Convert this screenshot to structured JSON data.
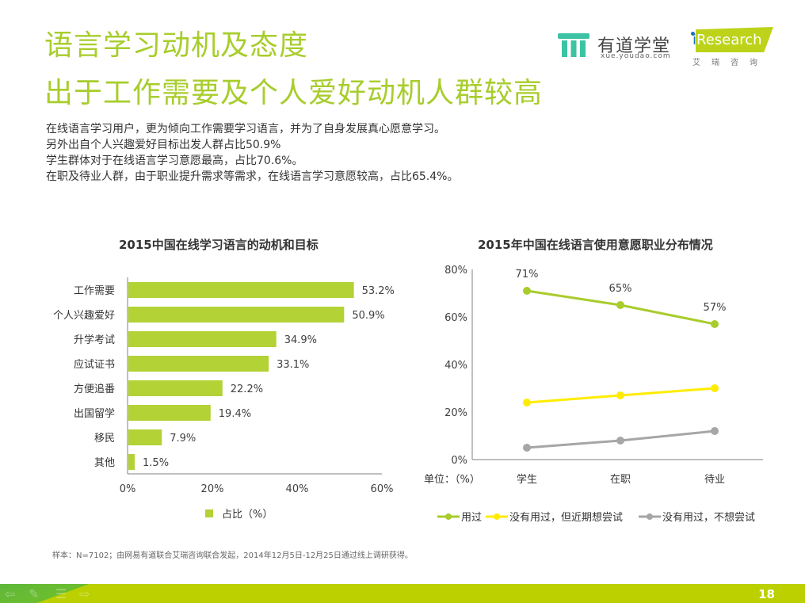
{
  "header": {
    "title": "语言学习动机及态度",
    "subtitle": "出于工作需要及个人爱好动机人群较高"
  },
  "summary": [
    "在线语言学习用户，更为倾向工作需要学习语言，并为了自身发展真心愿意学习。",
    "另外出自个人兴趣爱好目标出发人群占比50.9%",
    "学生群体对于在线语言学习意愿最高，占比70.6%。",
    "在职及待业人群，由于职业提升需求等需求，在线语言学习意愿较高，占比65.4%。"
  ],
  "logos": {
    "youdao_name": "有道学堂",
    "youdao_url": "xue.youdao.com",
    "iresearch_i": "i",
    "iresearch_word": "Research",
    "iresearch_cn": "艾瑞咨询"
  },
  "colors": {
    "accent": "#a8cd2c",
    "bar": "#b2d235",
    "series_used": "#a9cc2d",
    "series_maybe": "#ffec00",
    "series_no": "#a6a6a6",
    "footer": "#bcd000"
  },
  "chart_data": [
    {
      "type": "bar",
      "orientation": "horizontal",
      "title": "2015中国在线学习语言的动机和目标",
      "categories": [
        "工作需要",
        "个人兴趣爱好",
        "升学考试",
        "应试证书",
        "方便追番",
        "出国留学",
        "移民",
        "其他"
      ],
      "values": [
        53.2,
        50.9,
        34.9,
        33.1,
        22.2,
        19.4,
        7.9,
        1.5
      ],
      "value_labels": [
        "53.2%",
        "50.9%",
        "34.9%",
        "33.1%",
        "22.2%",
        "19.4%",
        "7.9%",
        "1.5%"
      ],
      "xlim": [
        0,
        60
      ],
      "xticks": [
        "0%",
        "20%",
        "40%",
        "60%"
      ],
      "xtick_values": [
        0,
        20,
        40,
        60
      ],
      "legend": [
        "占比（%）"
      ],
      "legend_position": "bottom",
      "grid": false
    },
    {
      "type": "line",
      "title": "2015年中国在线语言使用意愿职业分布情况",
      "categories": [
        "学生",
        "在职",
        "待业"
      ],
      "unit_label": "单位：（%）",
      "ylim": [
        0,
        80
      ],
      "yticks": [
        "0%",
        "20%",
        "40%",
        "60%",
        "80%"
      ],
      "ytick_values": [
        0,
        20,
        40,
        60,
        80
      ],
      "series": [
        {
          "name": "用过",
          "values": [
            71,
            65,
            57
          ],
          "labels": [
            "71%",
            "65%",
            "57%"
          ]
        },
        {
          "name": "没有用过，但近期想尝试",
          "values": [
            24,
            27,
            30
          ]
        },
        {
          "name": "没有用过，不想尝试",
          "values": [
            5,
            8,
            12
          ]
        }
      ],
      "legend_position": "bottom",
      "grid": false
    }
  ],
  "footnote": "样本：N=7102；由网易有道联合艾瑞咨询联合发起，2014年12月5日-12月25日通过线上调研获得。",
  "page_number": "18"
}
